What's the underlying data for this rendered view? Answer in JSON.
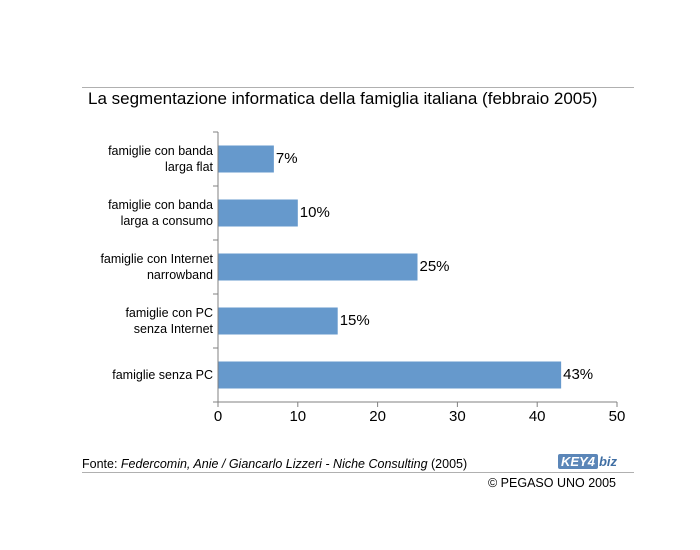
{
  "chart_data": {
    "type": "bar",
    "orientation": "horizontal",
    "title": "La segmentazione informatica della famiglia italiana (febbraio 2005)",
    "categories": [
      [
        "famiglie con banda",
        "larga flat"
      ],
      [
        "famiglie con banda",
        "larga a consumo"
      ],
      [
        "famiglie con Internet",
        "narrowband"
      ],
      [
        "famiglie con PC",
        "senza Internet"
      ],
      [
        "famiglie senza PC"
      ]
    ],
    "values": [
      7,
      10,
      25,
      15,
      43
    ],
    "value_labels": [
      "7%",
      "10%",
      "25%",
      "15%",
      "43%"
    ],
    "xlim": [
      0,
      50
    ],
    "xticks": [
      0,
      10,
      20,
      30,
      40,
      50
    ],
    "bar_color": "#6699cc",
    "grid": false
  },
  "footer": {
    "source_prefix": "Fonte: ",
    "source_italic": "Federcomin, Anie / Giancarlo Lizzeri - Niche Consulting",
    "source_suffix": " (2005)",
    "copyright": "© PEGASO UNO 2005",
    "logo_part1": "KEY4",
    "logo_part2": "biz"
  }
}
